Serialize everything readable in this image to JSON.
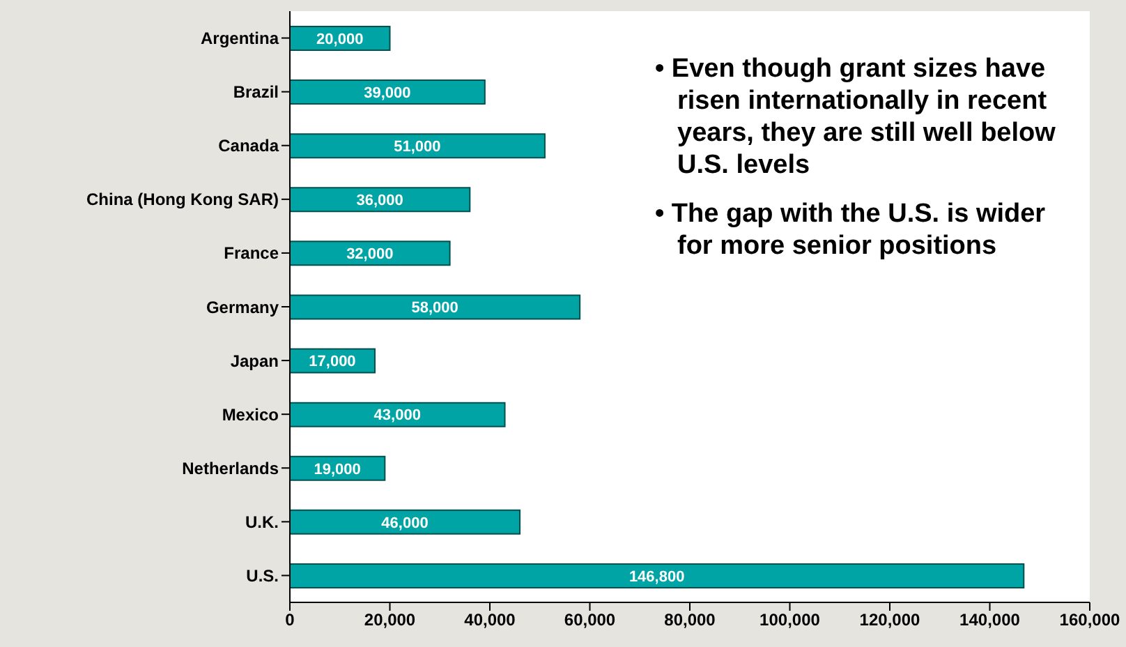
{
  "chart_data": {
    "type": "bar",
    "orientation": "horizontal",
    "categories": [
      "Argentina",
      "Brazil",
      "Canada",
      "China (Hong Kong SAR)",
      "France",
      "Germany",
      "Japan",
      "Mexico",
      "Netherlands",
      "U.K.",
      "U.S."
    ],
    "values": [
      20000,
      39000,
      51000,
      36000,
      32000,
      58000,
      17000,
      43000,
      19000,
      46000,
      146800
    ],
    "color": "#00a4a4",
    "xlim": [
      0,
      160000
    ],
    "xticks": [
      {
        "value": 0,
        "label": "0"
      },
      {
        "value": 20000,
        "label": "20,000"
      },
      {
        "value": 40000,
        "label": "40,000"
      },
      {
        "value": 60000,
        "label": "60,000"
      },
      {
        "value": 80000,
        "label": "80,000"
      },
      {
        "value": 100000,
        "label": "100,000"
      },
      {
        "value": 120000,
        "label": "120,000"
      },
      {
        "value": 140000,
        "label": "140,000"
      },
      {
        "value": 160000,
        "label": "160,000"
      }
    ],
    "value_labels": [
      "20,000",
      "39,000",
      "51,000",
      "36,000",
      "32,000",
      "58,000",
      "17,000",
      "43,000",
      "19,000",
      "46,000",
      "146,800"
    ],
    "grid": false,
    "legend": false,
    "annotations": [
      "• Even though grant sizes have risen internationally in recent years, they are still well below U.S. levels",
      "• The gap with the U.S. is wider for more senior positions"
    ]
  }
}
